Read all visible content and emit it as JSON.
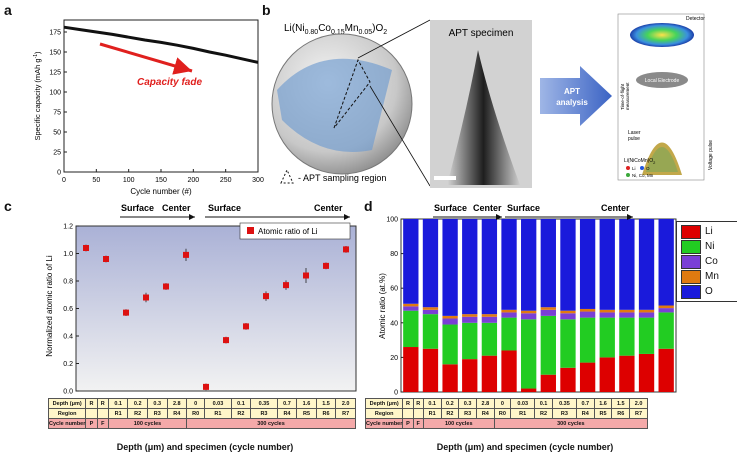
{
  "panels": {
    "a": "a",
    "b": "b",
    "c": "c",
    "d": "d"
  },
  "chart_a": {
    "type": "line",
    "xlabel": "Cycle number (#)",
    "ylabel": "Specific capacity (mAh g",
    "ylabel_sup": "-1",
    "ylabel_end": ")",
    "xticks": [
      "0",
      "50",
      "100",
      "150",
      "200",
      "250",
      "300"
    ],
    "yticks": [
      "0",
      "25",
      "50",
      "75",
      "100",
      "125",
      "150",
      "175"
    ],
    "xlim": [
      0,
      300
    ],
    "ylim": [
      0,
      190
    ],
    "annotation": "Capacity fade",
    "x": [
      0,
      25,
      50,
      75,
      100,
      125,
      150,
      175,
      200,
      225,
      250,
      275,
      300
    ],
    "y": [
      181,
      178,
      175,
      172,
      168.5,
      165,
      162,
      158.5,
      154.5,
      150,
      146,
      141.5,
      137
    ],
    "color": "#111111",
    "arrow_color": "#e0201e"
  },
  "panel_b": {
    "formula_prefix": "Li(Ni",
    "ni_sub": "0.80",
    "co": "Co",
    "co_sub": "0.15",
    "mn": "Mn",
    "mn_sub": "0.05",
    "formula_suffix": ")O",
    "o_sub": "2",
    "specimen_title": "APT specimen",
    "sampling_label": "- APT sampling region",
    "arrow_label_1": "APT",
    "arrow_label_2": "analysis",
    "detector": "Detector",
    "local_electrode": "Local Electrode",
    "laser": "Laser",
    "pulse": "pulse",
    "tof_1": "Time-of-flight",
    "tof_2": "measurement",
    "voltage": "Voltage pulse",
    "tip_formula": "Li(NiCoMn)O",
    "tip_formula_sub": "2",
    "legend_li": "Li",
    "legend_o": "O",
    "legend_tm": "Ni, Co, Mn"
  },
  "chart_data": [
    {
      "type": "line",
      "title": "",
      "xlabel": "Cycle number (#)",
      "ylabel": "Specific capacity (mAh g-1)",
      "x": [
        0,
        25,
        50,
        75,
        100,
        125,
        150,
        175,
        200,
        225,
        250,
        275,
        300
      ],
      "y": [
        181,
        178,
        175,
        172,
        168.5,
        165,
        162,
        158.5,
        154.5,
        150,
        146,
        141.5,
        137
      ],
      "xlim": [
        0,
        300
      ],
      "ylim": [
        0,
        190
      ]
    },
    {
      "type": "scatter",
      "ylabel": "Normalized atomic ratio of Li",
      "xlabel": "Depth (μm) and specimen (cycle number)",
      "legend": "Atomic ratio of Li",
      "categories": [
        "P",
        "F",
        "R1",
        "R2",
        "R3",
        "R4",
        "R0",
        "R1",
        "R2",
        "R3",
        "R4",
        "R5",
        "R6",
        "R7"
      ],
      "values": [
        1.04,
        0.96,
        0.57,
        0.68,
        0.76,
        0.99,
        0.03,
        0.37,
        0.47,
        0.69,
        0.77,
        0.84,
        0.91,
        1.03
      ],
      "errors": [
        0.01,
        0.01,
        0.01,
        0.02,
        0.01,
        0.03,
        0.01,
        0.01,
        0.01,
        0.02,
        0.02,
        0.04,
        0.01,
        0.01
      ],
      "ylim": [
        0,
        1.2
      ]
    },
    {
      "type": "bar",
      "stacked": true,
      "ylabel": "Atomic ratio (at.%)",
      "xlabel": "Depth (μm) and specimen (cycle number)",
      "categories": [
        "P",
        "F",
        "R1",
        "R2",
        "R3",
        "R4",
        "R0",
        "R1",
        "R2",
        "R3",
        "R4",
        "R5",
        "R6",
        "R7"
      ],
      "series": [
        {
          "name": "Li",
          "values": [
            26,
            25,
            16,
            19,
            21,
            24,
            2,
            10,
            14,
            17,
            20,
            21,
            22,
            25
          ]
        },
        {
          "name": "Ni",
          "values": [
            21,
            20,
            23,
            21,
            19,
            19,
            40,
            34,
            28,
            26,
            23,
            22,
            21,
            21
          ]
        },
        {
          "name": "Co",
          "values": [
            2.5,
            2.5,
            3.5,
            3.5,
            3.5,
            3,
            3.5,
            3.5,
            3.5,
            3.5,
            3,
            3,
            3,
            2.5
          ]
        },
        {
          "name": "Mn",
          "values": [
            1.5,
            1.5,
            1.5,
            1.5,
            1.5,
            1.5,
            1.5,
            1.5,
            1.5,
            1.5,
            1.5,
            1.5,
            1.5,
            1.5
          ]
        },
        {
          "name": "O",
          "values": [
            49,
            51,
            56,
            55,
            55,
            52.5,
            53,
            51,
            53,
            52,
            52.5,
            52.5,
            52.5,
            50
          ]
        }
      ],
      "ylim": [
        0,
        100
      ]
    }
  ],
  "chart_c": {
    "ylabel": "Normalized atomic ratio of Li",
    "legend": "Atomic ratio of Li",
    "yticks": [
      "0.0",
      "0.2",
      "0.4",
      "0.6",
      "0.8",
      "1.0",
      "1.2"
    ],
    "surface": "Surface",
    "center": "Center",
    "values": [
      1.04,
      0.96,
      0.57,
      0.68,
      0.76,
      0.99,
      0.03,
      0.37,
      0.47,
      0.69,
      0.77,
      0.84,
      0.91,
      1.03
    ],
    "errors": [
      0.01,
      0.01,
      0.01,
      0.02,
      0.01,
      0.03,
      0.01,
      0.01,
      0.01,
      0.02,
      0.02,
      0.04,
      0.01,
      0.01
    ],
    "marker_color": "#dd1111",
    "bg_top": "#aab1d6",
    "bg_bottom": "#f2f2f2"
  },
  "chart_d": {
    "ylabel": "Atomic ratio (at.%)",
    "yticks": [
      "0",
      "20",
      "40",
      "60",
      "80",
      "100"
    ],
    "surface": "Surface",
    "center": "Center",
    "colors": {
      "Li": "#dd0000",
      "Ni": "#22cc22",
      "Co": "#7a3fd6",
      "Mn": "#e07a10",
      "O": "#1a1adb"
    },
    "series": [
      {
        "name": "Li",
        "values": [
          26,
          25,
          16,
          19,
          21,
          24,
          2,
          10,
          14,
          17,
          20,
          21,
          22,
          25
        ]
      },
      {
        "name": "Ni",
        "values": [
          21,
          20,
          23,
          21,
          19,
          19,
          40,
          34,
          28,
          26,
          23,
          22,
          21,
          21
        ]
      },
      {
        "name": "Co",
        "values": [
          2.5,
          2.5,
          3.5,
          3.5,
          3.5,
          3,
          3.5,
          3.5,
          3.5,
          3.5,
          3,
          3,
          3,
          2.5
        ]
      },
      {
        "name": "Mn",
        "values": [
          1.5,
          1.5,
          1.5,
          1.5,
          1.5,
          1.5,
          1.5,
          1.5,
          1.5,
          1.5,
          1.5,
          1.5,
          1.5,
          1.5
        ]
      },
      {
        "name": "O",
        "values": [
          49,
          51,
          56,
          55,
          55,
          52.5,
          53,
          51,
          53,
          52,
          52.5,
          52.5,
          52.5,
          50
        ]
      }
    ]
  },
  "table": {
    "row1": [
      "Depth (μm)",
      "R",
      "R",
      "0.1",
      "0.2",
      "0.3",
      "2.8",
      "0",
      "0.03",
      "0.1",
      "0.35",
      "0.7",
      "1.6",
      "1.5",
      "2.0"
    ],
    "row2": [
      "Region",
      "",
      "",
      "R1",
      "R2",
      "R3",
      "R4",
      "R0",
      "R1",
      "R2",
      "R3",
      "R4",
      "R5",
      "R6",
      "R7"
    ],
    "row3_label": "Cycle number",
    "row3_p": "P",
    "row3_f": "F",
    "row3_100": "100 cycles",
    "row3_300": "300 cycles"
  },
  "caption": "Depth (μm) and specimen (cycle number)"
}
